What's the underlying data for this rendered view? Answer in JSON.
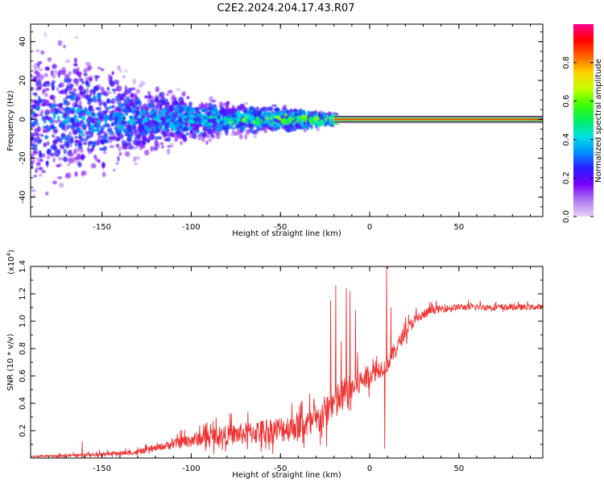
{
  "title": "C2E2.2024.204.17.43.R07",
  "chart_data": [
    {
      "type": "heatmap",
      "name": "spectrogram",
      "xlabel": "Height of straight line (km)",
      "ylabel": "Frequency (Hz)",
      "xlim": [
        -190,
        97
      ],
      "ylim": [
        -50,
        49
      ],
      "xticks": [
        -150,
        -100,
        -50,
        0,
        50
      ],
      "yticks": [
        -40,
        -20,
        0,
        20,
        40
      ],
      "colorbar": {
        "label": "Normalized spectral amplitude",
        "range": [
          0,
          1
        ],
        "ticks": [
          "0.0",
          "0.2",
          "0.4",
          "0.6",
          "0.8"
        ],
        "colormap": [
          "#e8d0f8",
          "#b07cf0",
          "#7a00ff",
          "#2a1cff",
          "#0090ff",
          "#00e0e0",
          "#00f060",
          "#40ff00",
          "#c8ff00",
          "#ffd000",
          "#ff6000",
          "#ff0000",
          "#ff0090"
        ]
      },
      "tone_band": {
        "x_start": -20,
        "x_end": 97,
        "frequency": 0,
        "amplitude": 0.85
      },
      "scatter_profile": [
        {
          "x": -190,
          "spread": 45,
          "amp": 0.25
        },
        {
          "x": -160,
          "spread": 35,
          "amp": 0.3
        },
        {
          "x": -130,
          "spread": 20,
          "amp": 0.3
        },
        {
          "x": -100,
          "spread": 12,
          "amp": 0.35
        },
        {
          "x": -70,
          "spread": 8,
          "amp": 0.4
        },
        {
          "x": -40,
          "spread": 6,
          "amp": 0.45
        },
        {
          "x": -20,
          "spread": 3,
          "amp": 0.55
        }
      ]
    },
    {
      "type": "line",
      "name": "snr",
      "xlabel": "Height of straight line (km)",
      "ylabel": "SNR (10 * v/v)",
      "scale_label": "(x10",
      "scale_exp": "4",
      "scale_close": ")",
      "xlim": [
        -190,
        97
      ],
      "ylim": [
        0,
        1.4
      ],
      "xticks": [
        -150,
        -100,
        -50,
        0,
        50
      ],
      "yticks": [
        "0.2",
        "0.4",
        "0.6",
        "0.8",
        "1.0",
        "1.2",
        "1.4"
      ],
      "color": "#ee3333",
      "baseline": [
        {
          "x": -190,
          "y": 0.01
        },
        {
          "x": -160,
          "y": 0.02
        },
        {
          "x": -130,
          "y": 0.04
        },
        {
          "x": -110,
          "y": 0.1
        },
        {
          "x": -90,
          "y": 0.15
        },
        {
          "x": -70,
          "y": 0.17
        },
        {
          "x": -50,
          "y": 0.2
        },
        {
          "x": -30,
          "y": 0.25
        },
        {
          "x": -20,
          "y": 0.38
        },
        {
          "x": -10,
          "y": 0.5
        },
        {
          "x": 0,
          "y": 0.6
        },
        {
          "x": 10,
          "y": 0.68
        },
        {
          "x": 15,
          "y": 0.8
        },
        {
          "x": 20,
          "y": 0.92
        },
        {
          "x": 25,
          "y": 1.0
        },
        {
          "x": 35,
          "y": 1.08
        },
        {
          "x": 50,
          "y": 1.1
        },
        {
          "x": 97,
          "y": 1.1
        }
      ],
      "noise_amplitude": [
        {
          "x": -190,
          "a": 0.01
        },
        {
          "x": -120,
          "a": 0.04
        },
        {
          "x": -100,
          "a": 0.1
        },
        {
          "x": -60,
          "a": 0.18
        },
        {
          "x": -30,
          "a": 0.22
        },
        {
          "x": -20,
          "a": 0.3
        },
        {
          "x": 0,
          "a": 0.15
        },
        {
          "x": 20,
          "a": 0.1
        },
        {
          "x": 40,
          "a": 0.05
        },
        {
          "x": 97,
          "a": 0.04
        }
      ],
      "spikes": [
        {
          "x": -161,
          "y": 0.12
        },
        {
          "x": -22,
          "y": 1.15
        },
        {
          "x": -19,
          "y": 1.26
        },
        {
          "x": -16,
          "y": 0.85
        },
        {
          "x": -13,
          "y": 1.24
        },
        {
          "x": -11,
          "y": 1.22
        },
        {
          "x": -8,
          "y": 1.08
        },
        {
          "x": 8.5,
          "y": 0.07
        },
        {
          "x": 9.5,
          "y": 1.4
        },
        {
          "x": 12,
          "y": 1.1
        }
      ]
    }
  ]
}
